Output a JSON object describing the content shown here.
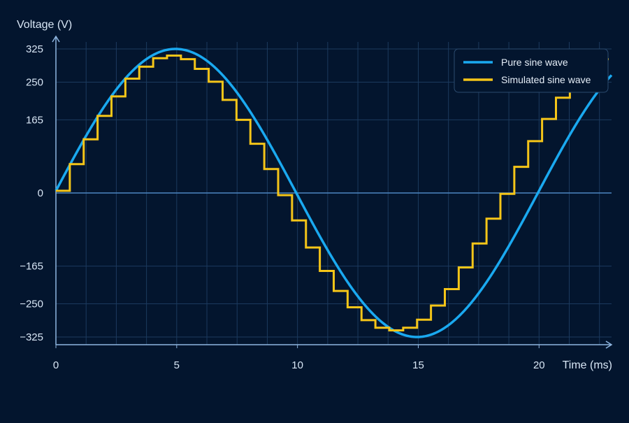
{
  "chart_data": {
    "type": "line",
    "title": "",
    "xlabel": "Time (ms)",
    "ylabel": "Voltage (V)",
    "xlim": [
      0,
      23
    ],
    "ylim": [
      -325,
      325
    ],
    "x_ticks": [
      0,
      5,
      10,
      15,
      20
    ],
    "y_ticks": [
      325,
      250,
      165,
      0,
      -165,
      -250,
      -325
    ],
    "y_tick_labels": [
      "325",
      "250",
      "165",
      "0",
      "−165",
      "−250",
      "−325"
    ],
    "grid": true,
    "legend_position": "top-right",
    "series": [
      {
        "name": "Pure sine wave",
        "color": "#1aa9f0",
        "amplitude": 325,
        "period_ms": 20,
        "x": [
          0,
          1,
          2,
          3,
          4,
          5,
          6,
          7,
          8,
          9,
          10,
          11,
          12,
          13,
          14,
          15,
          16,
          17,
          18,
          19,
          20,
          21,
          22,
          23
        ],
        "values": [
          5,
          113,
          207,
          277,
          318,
          325,
          297,
          238,
          155,
          57,
          -47,
          -148,
          -233,
          -294,
          -325,
          -320,
          -281,
          -212,
          -119,
          -15,
          91,
          191,
          266,
          315
        ]
      },
      {
        "name": "Simulated sine wave",
        "color": "#f5c518",
        "step_ms": 0.575,
        "x": [
          0.0,
          0.575,
          1.15,
          1.725,
          2.3,
          2.875,
          3.45,
          4.025,
          4.6,
          5.175,
          5.75,
          6.325,
          6.9,
          7.475,
          8.05,
          8.625,
          9.2,
          9.775,
          10.35,
          10.925,
          11.5,
          12.075,
          12.65,
          13.225,
          13.8,
          14.375,
          14.95,
          15.525,
          16.1,
          16.675,
          17.25,
          17.825,
          18.4,
          18.975,
          19.55,
          20.125,
          20.7,
          21.275,
          21.85,
          22.425
        ],
        "values": [
          5,
          65,
          121,
          174,
          218,
          258,
          285,
          304,
          310,
          302,
          280,
          251,
          210,
          165,
          111,
          54,
          -5,
          -62,
          -123,
          -176,
          -221,
          -258,
          -287,
          -304,
          -310,
          -304,
          -286,
          -254,
          -217,
          -168,
          -114,
          -58,
          -2,
          59,
          117,
          167,
          215,
          254,
          282,
          302
        ]
      }
    ]
  }
}
